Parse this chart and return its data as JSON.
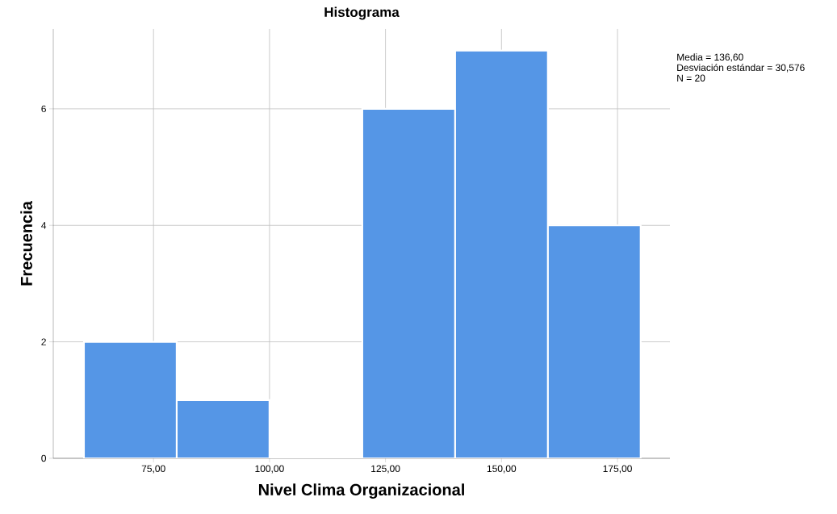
{
  "chart_data": {
    "type": "histogram",
    "title": "Histograma",
    "xlabel": "Nivel Clima Organizacional",
    "ylabel": "Frecuencia",
    "bins": [
      60,
      80,
      100,
      120,
      140,
      160,
      180
    ],
    "values": [
      2,
      1,
      0,
      6,
      7,
      4
    ],
    "color": "#5596e6",
    "xlim": [
      53.4,
      186.3
    ],
    "ylim": [
      0,
      7.37
    ],
    "xticks": [
      {
        "value": 75,
        "label": "75,00"
      },
      {
        "value": 100,
        "label": "100,00"
      },
      {
        "value": 125,
        "label": "125,00"
      },
      {
        "value": 150,
        "label": "150,00"
      },
      {
        "value": 175,
        "label": "175,00"
      }
    ],
    "yticks": [
      0,
      2,
      4,
      6
    ],
    "grid": true,
    "annotations": [
      "Media = 136,60",
      "Desviación estándar = 30,576",
      "N = 20"
    ]
  }
}
